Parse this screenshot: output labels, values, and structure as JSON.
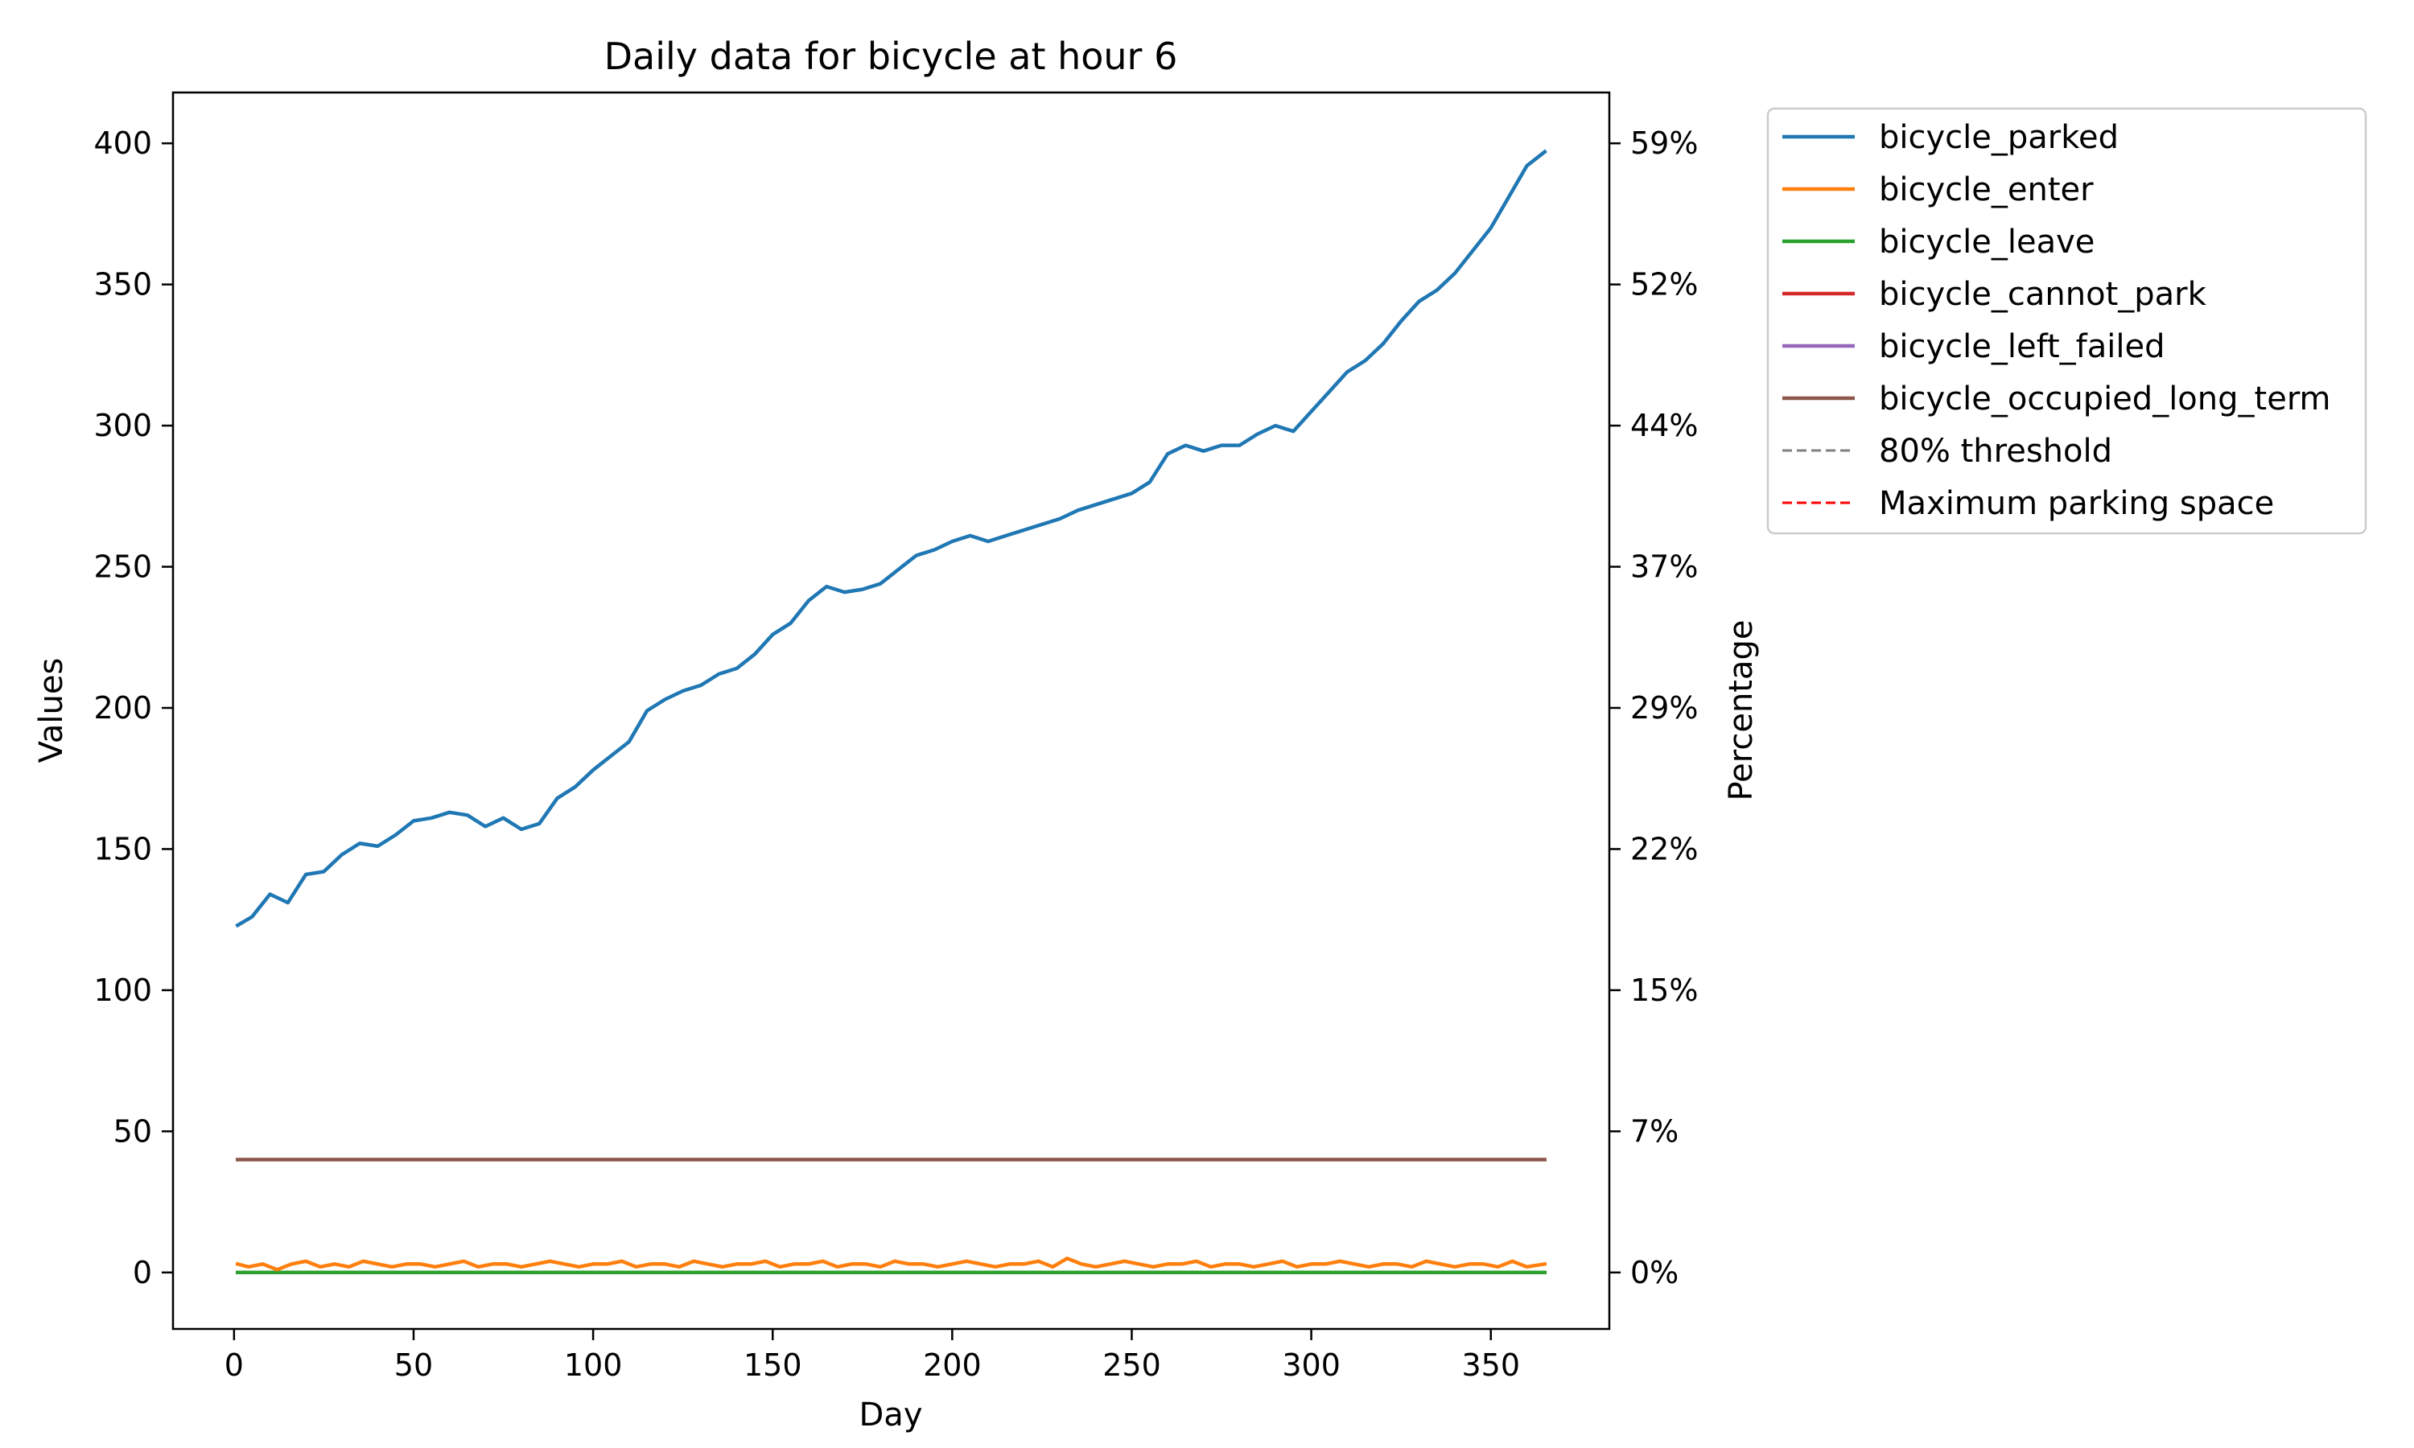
{
  "chart_data": {
    "type": "line",
    "title": "Daily data for bicycle at hour 6",
    "xlabel": "Day",
    "ylabel": "Values",
    "y2label": "Percentage",
    "xlim": [
      -17,
      383
    ],
    "ylim": [
      -20,
      418
    ],
    "x_ticks": [
      0,
      50,
      100,
      150,
      200,
      250,
      300,
      350
    ],
    "y_ticks": [
      0,
      50,
      100,
      150,
      200,
      250,
      300,
      350,
      400
    ],
    "y2_ticks": [
      "0%",
      "7%",
      "15%",
      "22%",
      "29%",
      "37%",
      "44%",
      "52%",
      "59%"
    ],
    "grid": false,
    "legend_position": "outside-upper-right",
    "series": [
      {
        "name": "bicycle_parked",
        "color": "#1f77b4",
        "style": "solid",
        "x": [
          1,
          5,
          10,
          15,
          20,
          25,
          30,
          35,
          40,
          45,
          50,
          55,
          60,
          65,
          70,
          75,
          80,
          85,
          90,
          95,
          100,
          105,
          110,
          115,
          120,
          125,
          130,
          135,
          140,
          145,
          150,
          155,
          160,
          165,
          170,
          175,
          180,
          185,
          190,
          195,
          200,
          205,
          210,
          215,
          220,
          225,
          230,
          235,
          240,
          245,
          250,
          255,
          260,
          265,
          270,
          275,
          280,
          285,
          290,
          295,
          300,
          305,
          310,
          315,
          320,
          325,
          330,
          335,
          340,
          345,
          350,
          355,
          360,
          365
        ],
        "values": [
          123,
          126,
          134,
          131,
          141,
          142,
          148,
          152,
          151,
          155,
          160,
          161,
          163,
          162,
          158,
          161,
          157,
          159,
          168,
          172,
          178,
          183,
          188,
          199,
          203,
          206,
          208,
          212,
          214,
          219,
          226,
          230,
          238,
          243,
          241,
          242,
          244,
          249,
          254,
          256,
          259,
          261,
          259,
          261,
          263,
          265,
          267,
          270,
          272,
          274,
          276,
          280,
          290,
          293,
          291,
          293,
          293,
          297,
          300,
          298,
          305,
          312,
          319,
          323,
          329,
          337,
          344,
          348,
          354,
          362,
          370,
          381,
          392,
          397
        ]
      },
      {
        "name": "bicycle_enter",
        "color": "#ff7f0e",
        "style": "solid",
        "x": [
          1,
          4,
          8,
          12,
          16,
          20,
          24,
          28,
          32,
          36,
          40,
          44,
          48,
          52,
          56,
          60,
          64,
          68,
          72,
          76,
          80,
          84,
          88,
          92,
          96,
          100,
          104,
          108,
          112,
          116,
          120,
          124,
          128,
          132,
          136,
          140,
          144,
          148,
          152,
          156,
          160,
          164,
          168,
          172,
          176,
          180,
          184,
          188,
          192,
          196,
          200,
          204,
          208,
          212,
          216,
          220,
          224,
          228,
          232,
          236,
          240,
          244,
          248,
          252,
          256,
          260,
          264,
          268,
          272,
          276,
          280,
          284,
          288,
          292,
          296,
          300,
          304,
          308,
          312,
          316,
          320,
          324,
          328,
          332,
          336,
          340,
          344,
          348,
          352,
          356,
          360,
          365
        ],
        "values": [
          3,
          2,
          3,
          1,
          3,
          4,
          2,
          3,
          2,
          4,
          3,
          2,
          3,
          3,
          2,
          3,
          4,
          2,
          3,
          3,
          2,
          3,
          4,
          3,
          2,
          3,
          3,
          4,
          2,
          3,
          3,
          2,
          4,
          3,
          2,
          3,
          3,
          4,
          2,
          3,
          3,
          4,
          2,
          3,
          3,
          2,
          4,
          3,
          3,
          2,
          3,
          4,
          3,
          2,
          3,
          3,
          4,
          2,
          5,
          3,
          2,
          3,
          4,
          3,
          2,
          3,
          3,
          4,
          2,
          3,
          3,
          2,
          3,
          4,
          2,
          3,
          3,
          4,
          3,
          2,
          3,
          3,
          2,
          4,
          3,
          2,
          3,
          3,
          2,
          4,
          2,
          3
        ]
      },
      {
        "name": "bicycle_leave",
        "color": "#2ca02c",
        "style": "solid",
        "x": [
          1,
          365
        ],
        "values": [
          0,
          0
        ]
      },
      {
        "name": "bicycle_cannot_park",
        "color": "#d62728",
        "style": "solid",
        "x": [
          1,
          365
        ],
        "values": [
          0,
          0
        ]
      },
      {
        "name": "bicycle_left_failed",
        "color": "#9467bd",
        "style": "solid",
        "x": [
          1,
          365
        ],
        "values": [
          0,
          0
        ]
      },
      {
        "name": "bicycle_occupied_long_term",
        "color": "#8c564b",
        "style": "solid",
        "x": [
          1,
          365
        ],
        "values": [
          40,
          40
        ]
      },
      {
        "name": "80% threshold",
        "color": "#808080",
        "style": "dashed",
        "x": [],
        "values": []
      },
      {
        "name": "Maximum parking space",
        "color": "#ff0000",
        "style": "dashed",
        "x": [],
        "values": []
      }
    ]
  }
}
